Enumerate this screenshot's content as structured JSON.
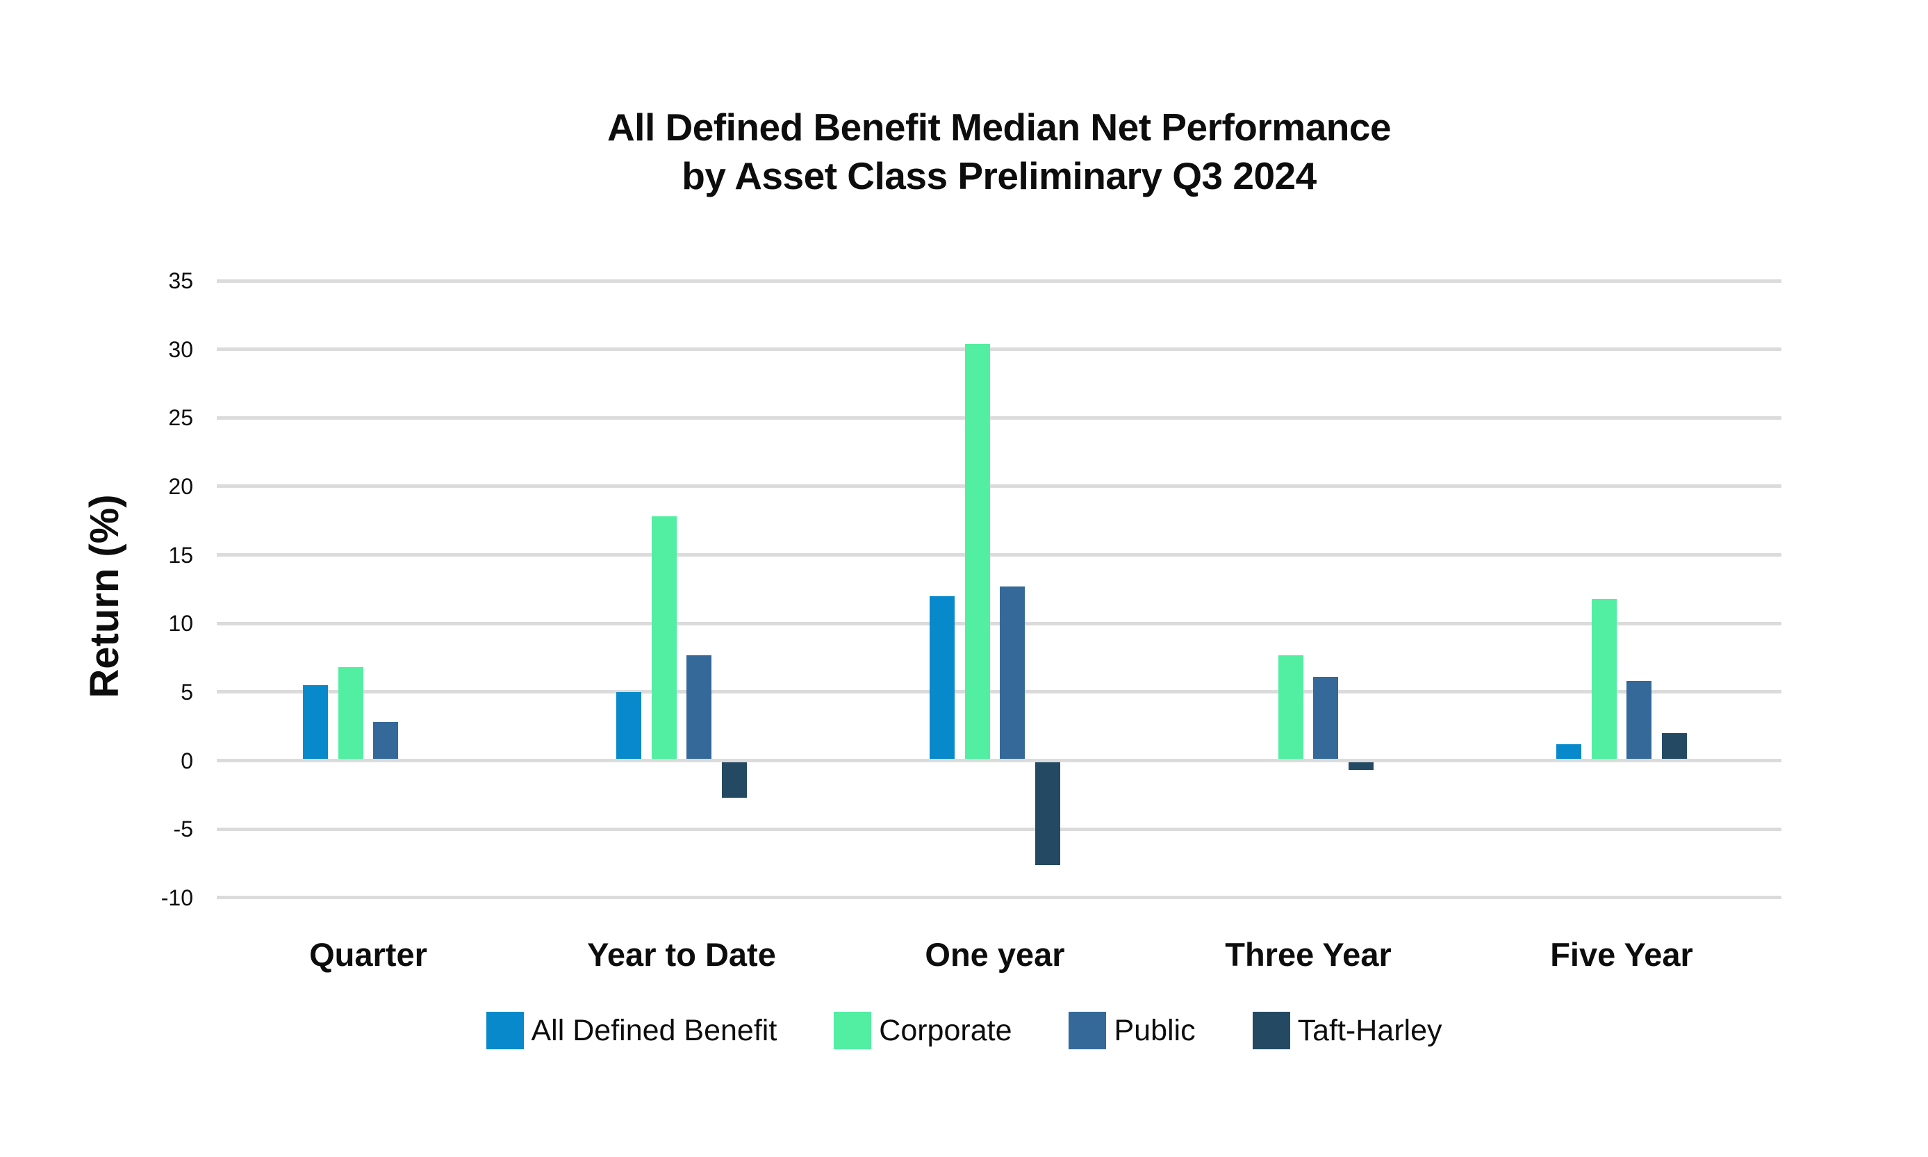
{
  "title": {
    "line1": "All Defined Benefit Median Net Performance",
    "line2": "by Asset Class Preliminary Q3 2024"
  },
  "y_axis": {
    "label": "Return (%)",
    "ticks": [
      35,
      30,
      25,
      20,
      15,
      10,
      5,
      0,
      -5,
      -10
    ]
  },
  "chart_data": {
    "type": "bar",
    "title": "All Defined Benefit Median Net Performance by Asset Class Preliminary Q3 2024",
    "xlabel": "",
    "ylabel": "Return (%)",
    "ylim": [
      -10,
      35
    ],
    "ytick_step": 5,
    "grid": true,
    "legend_position": "bottom",
    "categories": [
      "Quarter",
      "Year to Date",
      "One year",
      "Three Year",
      "Five Year"
    ],
    "series": [
      {
        "name": "All Defined Benefit",
        "color": "#0789CB",
        "values": [
          5.5,
          5.0,
          12.0,
          null,
          1.2
        ]
      },
      {
        "name": "Corporate",
        "color": "#52EFA3",
        "values": [
          6.8,
          17.8,
          30.4,
          7.7,
          11.8
        ]
      },
      {
        "name": "Public",
        "color": "#34699A",
        "values": [
          2.8,
          7.7,
          12.7,
          6.1,
          5.8
        ]
      },
      {
        "name": "Taft-Harley",
        "color": "#244A63",
        "values": [
          null,
          -2.7,
          -7.6,
          -0.7,
          2.0
        ]
      }
    ]
  },
  "colors": {
    "background": "#FFFFFF",
    "gridline": "#DBDBDB",
    "text": "#0D0D0D"
  }
}
